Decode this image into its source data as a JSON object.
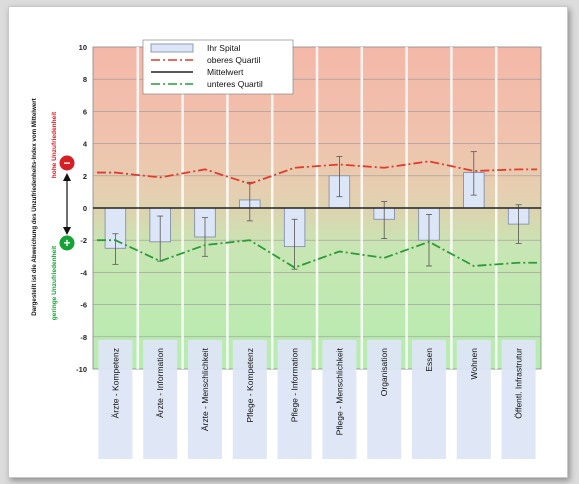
{
  "chart_data": {
    "type": "bar",
    "ylabel": "Dargestellt ist die Abweichung des Unzufriedenheits-Index vom Mittelwert",
    "high_label": "hohe Unzufriedenheit",
    "low_label": "geringe Unzufriedenheit",
    "ylim": [
      -10,
      10
    ],
    "yticks": [
      10,
      8,
      6,
      4,
      2,
      0,
      -2,
      -4,
      -6,
      -8,
      -10
    ],
    "categories": [
      "Ärzte - Kompetenz",
      "Ärzte - Information",
      "Ärzte - Menschlichkeit",
      "Pflege - Kompetenz",
      "Pflege - Information",
      "Pflege - Menschlichkeit",
      "Organisation",
      "Essen",
      "Wohnen",
      "Öffentl. Infrastrutur"
    ],
    "legend": {
      "ihr_spital": "Ihr Spital",
      "oberes": "oberes Quartil",
      "mittelwert": "Mittelwert",
      "unteres": "unteres Quartil"
    },
    "series": [
      {
        "name": "Ihr Spital",
        "values": [
          -2.5,
          -2.1,
          -1.8,
          0.5,
          -2.4,
          2.0,
          -0.7,
          -2.0,
          2.2,
          -1.0
        ],
        "err_low": [
          -3.5,
          -3.3,
          -3.0,
          -0.8,
          -3.8,
          0.7,
          -1.9,
          -3.6,
          0.8,
          -2.2
        ],
        "err_high": [
          -1.6,
          -0.5,
          -0.6,
          1.6,
          -0.7,
          3.2,
          0.4,
          -0.4,
          3.5,
          0.2
        ]
      },
      {
        "name": "oberes Quartil",
        "values": [
          2.2,
          1.9,
          2.4,
          1.5,
          2.5,
          2.7,
          2.5,
          2.9,
          2.3,
          2.4
        ]
      },
      {
        "name": "Mittelwert",
        "values": [
          0,
          0,
          0,
          0,
          0,
          0,
          0,
          0,
          0,
          0
        ]
      },
      {
        "name": "unteres Quartil",
        "values": [
          -2.0,
          -3.3,
          -2.3,
          -2.0,
          -3.7,
          -2.7,
          -3.1,
          -2.1,
          -3.6,
          -3.4
        ]
      }
    ],
    "colors": {
      "bar_fill": "#dde6f7",
      "bar_stroke": "#7788aa",
      "upper": "#e03c2f",
      "lower": "#2c9a3a",
      "mean": "#222222",
      "top_bg": "#f4b8a8",
      "bottom_bg": "#b6ecb0",
      "mid_bg": "#ddd3b3",
      "minus_circle": "#d81e25",
      "plus_circle": "#17a238"
    },
    "icons": {
      "minus": "−",
      "plus": "+"
    }
  }
}
